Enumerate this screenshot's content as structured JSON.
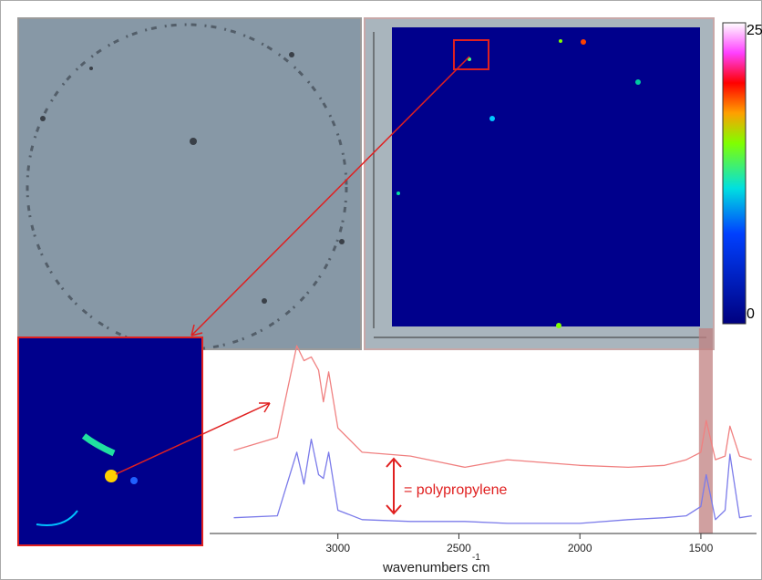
{
  "chart_data": {
    "type": "line",
    "xlabel": "wavenumbers cm",
    "xlabel_superscript": "-1",
    "annotation": "= polypropylene",
    "colorbar": {
      "max": "25",
      "min": "0"
    },
    "x": [
      3430,
      3250,
      3170,
      3140,
      3110,
      3080,
      3060,
      3038,
      3000,
      2900,
      2700,
      2475,
      2300,
      2000,
      1800,
      1650,
      1560,
      1500,
      1478,
      1440,
      1400,
      1380,
      1340,
      1290
    ],
    "series": [
      {
        "color": "#f08080",
        "values": [
          42,
          49,
          98,
          90,
          92,
          85,
          68,
          84,
          54,
          41,
          39,
          33,
          37,
          34,
          33,
          34,
          37,
          41,
          58,
          37,
          39,
          55,
          39,
          37
        ]
      },
      {
        "color": "#7b7bea",
        "values": [
          6,
          7,
          41,
          24,
          48,
          29,
          27,
          41,
          10,
          5,
          4,
          4,
          3,
          3,
          5,
          6,
          7,
          12,
          29,
          5,
          10,
          40,
          6,
          7
        ]
      }
    ],
    "xlim": [
      3530,
      1270
    ],
    "ylim": [
      0,
      100
    ],
    "xticks": [
      3000,
      2500,
      2000,
      1500
    ],
    "highlight": [
      1508,
      1451
    ]
  }
}
